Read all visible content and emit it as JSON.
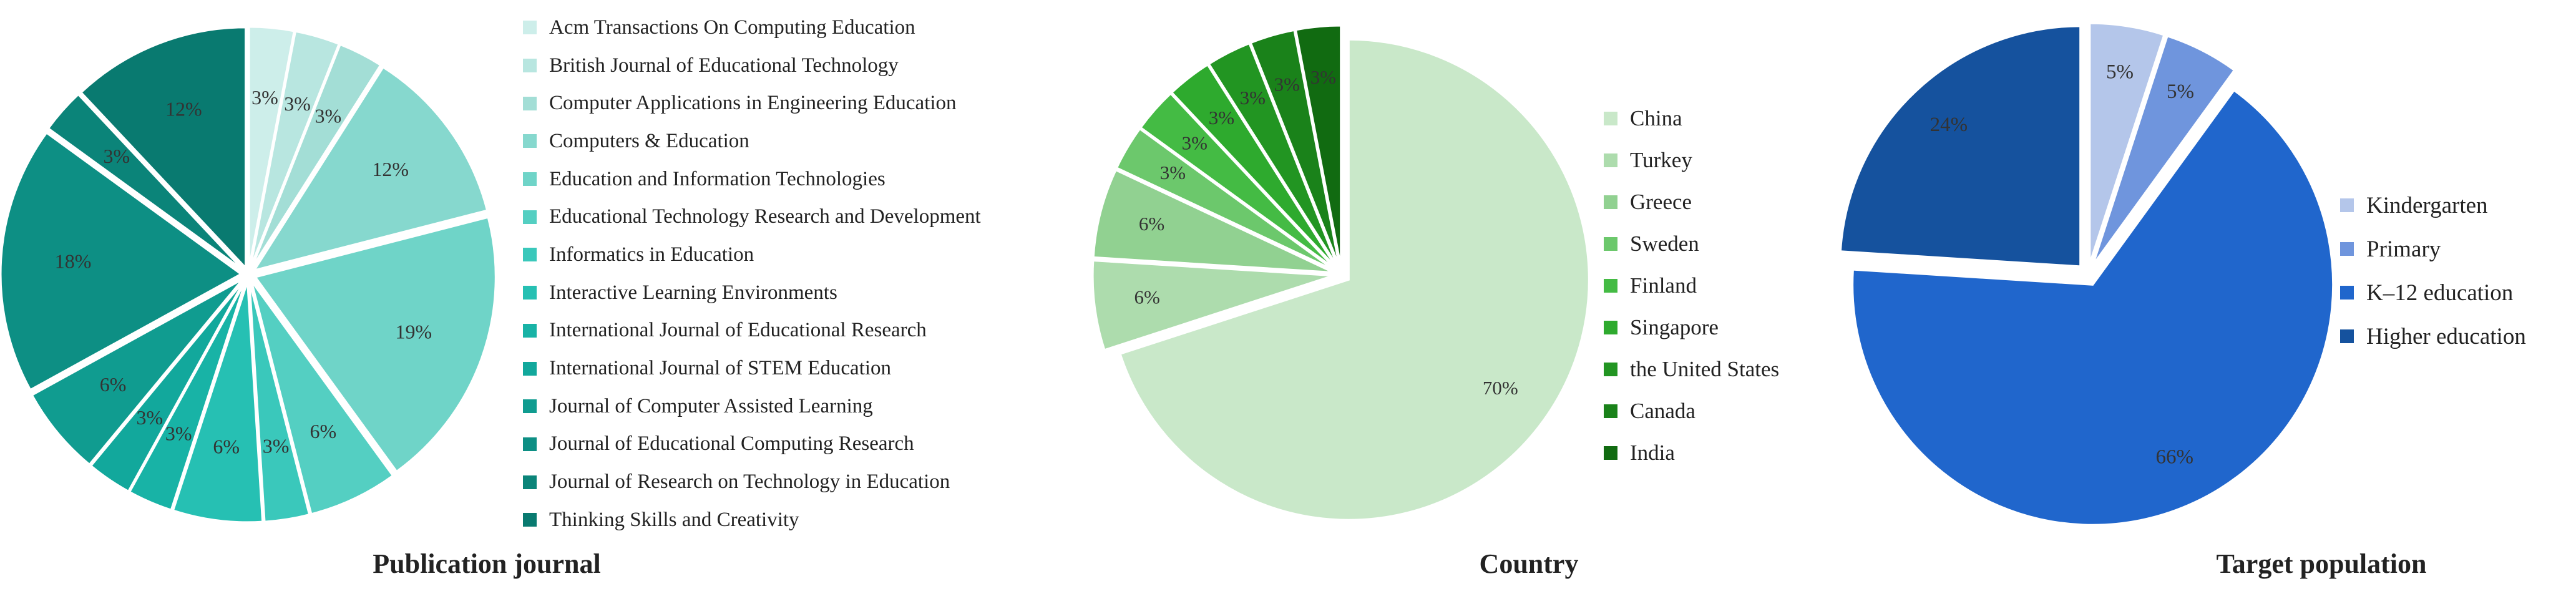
{
  "chart_data": [
    {
      "type": "pie",
      "title": "Publication journal",
      "exploded": true,
      "start_angle_deg": 0,
      "colors": [
        "#cdeeea",
        "#b8e6e0",
        "#a3ded6",
        "#86d8ce",
        "#6fd4c8",
        "#54cfc2",
        "#3ac8bb",
        "#26c0b3",
        "#18b3a6",
        "#12a89c",
        "#109c90",
        "#0d8f84",
        "#0b8479",
        "#097a70"
      ],
      "slices": [
        {
          "label": "Acm Transactions On Computing Education",
          "value": 3,
          "display": "3%"
        },
        {
          "label": "British Journal of Educational Technology",
          "value": 3,
          "display": "3%"
        },
        {
          "label": "Computer Applications in Engineering Education",
          "value": 3,
          "display": "3%"
        },
        {
          "label": "Computers & Education",
          "value": 12,
          "display": "12%"
        },
        {
          "label": "Education and Information Technologies",
          "value": 19,
          "display": "19%"
        },
        {
          "label": "Educational Technology Research and Development",
          "value": 6,
          "display": "6%"
        },
        {
          "label": "Informatics in Education",
          "value": 3,
          "display": "3%"
        },
        {
          "label": "Interactive Learning Environments",
          "value": 6,
          "display": "6%"
        },
        {
          "label": "International Journal of Educational Research",
          "value": 3,
          "display": "3%"
        },
        {
          "label": "International Journal of STEM Education",
          "value": 3,
          "display": "3%"
        },
        {
          "label": "Journal of Computer Assisted Learning",
          "value": 6,
          "display": "6%"
        },
        {
          "label": "Journal of Educational Computing Research",
          "value": 18,
          "display": "18%"
        },
        {
          "label": "Journal of Research on Technology in Education",
          "value": 3,
          "display": "3%"
        },
        {
          "label": "Thinking Skills and Creativity",
          "value": 12,
          "display": "12%"
        }
      ]
    },
    {
      "type": "pie",
      "title": "Country",
      "exploded": true,
      "start_angle_deg": 0,
      "colors": [
        "#c9e8c9",
        "#addcad",
        "#91d191",
        "#6cc86c",
        "#44bb44",
        "#2eaa2e",
        "#229522",
        "#1a821a",
        "#116b11"
      ],
      "slices": [
        {
          "label": "China",
          "value": 70,
          "display": "70%"
        },
        {
          "label": "Turkey",
          "value": 6,
          "display": "6%"
        },
        {
          "label": "Greece",
          "value": 6,
          "display": "6%"
        },
        {
          "label": "Sweden",
          "value": 3,
          "display": "3%"
        },
        {
          "label": "Finland",
          "value": 3,
          "display": "3%"
        },
        {
          "label": "Singapore",
          "value": 3,
          "display": "3%"
        },
        {
          "label": "the United States",
          "value": 3,
          "display": "3%"
        },
        {
          "label": "Canada",
          "value": 3,
          "display": "3%"
        },
        {
          "label": "India",
          "value": 3,
          "display": "3%"
        }
      ]
    },
    {
      "type": "pie",
      "title": "Target population",
      "exploded": true,
      "start_angle_deg": 0,
      "colors": [
        "#b4c6ea",
        "#6f95dd",
        "#2066cc",
        "#15529e"
      ],
      "slices": [
        {
          "label": "Kindergarten",
          "value": 5,
          "display": "5%"
        },
        {
          "label": "Primary",
          "value": 5,
          "display": "5%"
        },
        {
          "label": "K–12 education",
          "value": 66,
          "display": "66%"
        },
        {
          "label": "Higher education",
          "value": 24,
          "display": "24%"
        }
      ]
    }
  ]
}
